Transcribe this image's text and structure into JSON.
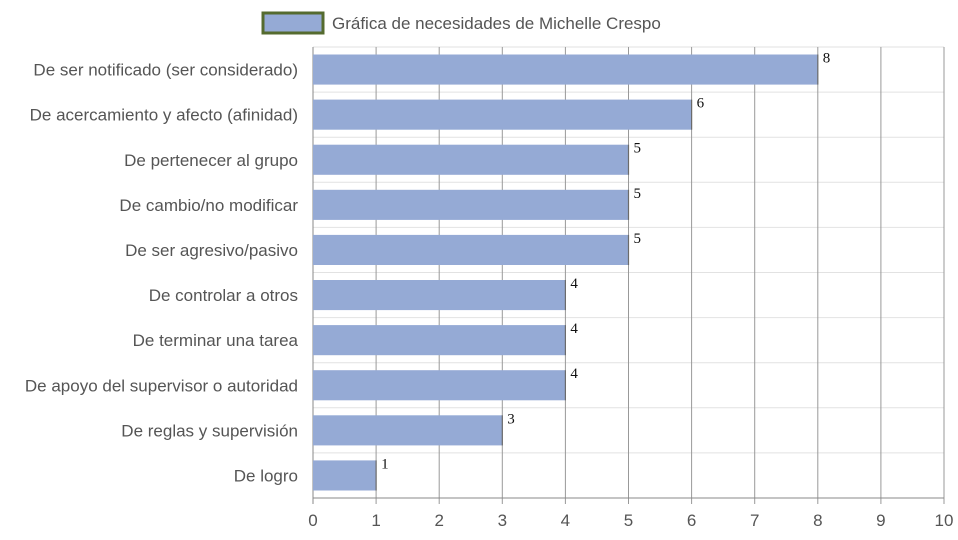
{
  "chart_data": {
    "type": "bar",
    "orientation": "horizontal",
    "legend_position": "top",
    "grid": true,
    "categories": [
      "De ser notificado (ser considerado)",
      "De acercamiento y afecto (afinidad)",
      "De pertenecer al grupo",
      "De cambio/no modificar",
      "De ser agresivo/pasivo",
      "De controlar a otros",
      "De terminar una tarea",
      "De apoyo del supervisor o autoridad",
      "De reglas y supervisión",
      "De logro"
    ],
    "series": [
      {
        "name": "Gráfica de necesidades de Michelle Crespo",
        "values": [
          8,
          6,
          5,
          5,
          5,
          4,
          4,
          4,
          3,
          1
        ],
        "color": "#95aad5",
        "border_color": "#556b2f"
      }
    ],
    "xlim": [
      0,
      10
    ],
    "xticks": [
      "0",
      "1",
      "2",
      "3",
      "4",
      "5",
      "6",
      "7",
      "8",
      "9",
      "10"
    ],
    "show_data_labels": true
  }
}
